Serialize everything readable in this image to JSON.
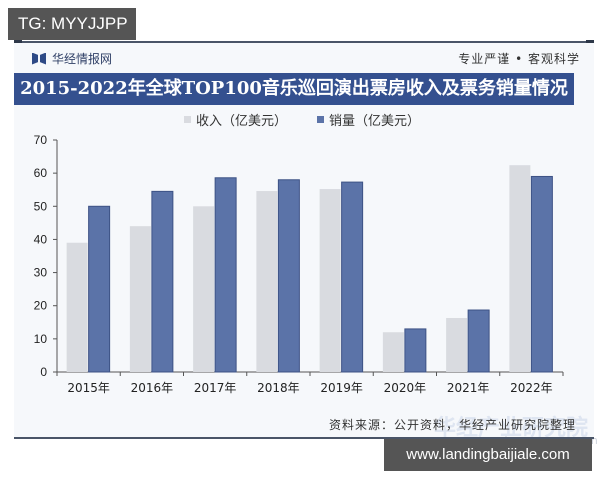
{
  "overlay": {
    "top_left_badge": "TG: MYYJJPP",
    "bottom_right_badge": "www.landingbaijiale.com"
  },
  "header": {
    "brand": "华经情报网",
    "slogan": "专业严谨 • 客观科学",
    "title": "2015-2022年全球TOP100音乐巡回演出票房收入及票务销量情况"
  },
  "footer": {
    "source": "资料来源：公开资料，华经产业研究院整理",
    "watermark": "华经产业研究院",
    "watermark_url": "www.huaon.com"
  },
  "colors": {
    "revenue": "#d9dbe0",
    "sales": "#5b73a8",
    "title_bar": "#34508f"
  },
  "chart_data": {
    "type": "bar",
    "title": "2015-2022年全球TOP100音乐巡回演出票房收入及票务销量情况",
    "xlabel": "",
    "ylabel": "",
    "categories": [
      "2015年",
      "2016年",
      "2017年",
      "2018年",
      "2019年",
      "2020年",
      "2021年",
      "2022年"
    ],
    "series": [
      {
        "name": "收入（亿美元）",
        "values": [
          39,
          44,
          50,
          54.6,
          55.2,
          12,
          16.3,
          62.4
        ]
      },
      {
        "name": "销量（亿美元）",
        "values": [
          50,
          54.5,
          58.6,
          58,
          57.3,
          13,
          18.7,
          59
        ]
      }
    ],
    "ylim": [
      0,
      70
    ],
    "yticks": [
      0,
      10,
      20,
      30,
      40,
      50,
      60,
      70
    ],
    "grid": false,
    "legend_position": "top"
  }
}
